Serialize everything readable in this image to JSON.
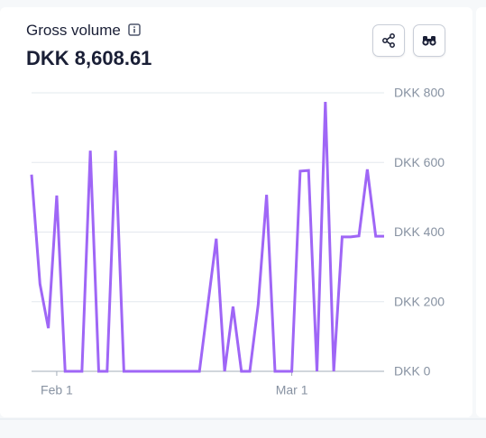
{
  "chart_data": {
    "type": "line",
    "title": "Gross volume",
    "subtitle": "DKK 8,608.61",
    "categories": [
      null,
      null,
      null,
      "Feb 1",
      null,
      null,
      null,
      null,
      null,
      null,
      null,
      null,
      null,
      null,
      null,
      null,
      null,
      null,
      null,
      null,
      null,
      null,
      null,
      null,
      null,
      null,
      null,
      null,
      null,
      null,
      null,
      "Mar 1",
      null,
      null,
      null,
      null,
      null,
      null,
      null,
      null,
      null,
      null,
      null
    ],
    "series": [
      {
        "color": "#9f66f6",
        "values": [
          565,
          251,
          124,
          505,
          0,
          0,
          0,
          634,
          0,
          0,
          634,
          0,
          0,
          0,
          0,
          0,
          0,
          0,
          0,
          0,
          0,
          190,
          381,
          0,
          186,
          0,
          0,
          192,
          507,
          0,
          0,
          0,
          575,
          577,
          0,
          774,
          0,
          386,
          386,
          389,
          580,
          388,
          388
        ]
      }
    ],
    "ylim": [
      0,
      800
    ],
    "yticks": [
      {
        "value": 0,
        "label": "DKK 0"
      },
      {
        "value": 200,
        "label": "DKK 200"
      },
      {
        "value": 400,
        "label": "DKK 400"
      },
      {
        "value": 600,
        "label": "DKK 600"
      },
      {
        "value": 800,
        "label": "DKK 800"
      }
    ],
    "grid": true
  }
}
